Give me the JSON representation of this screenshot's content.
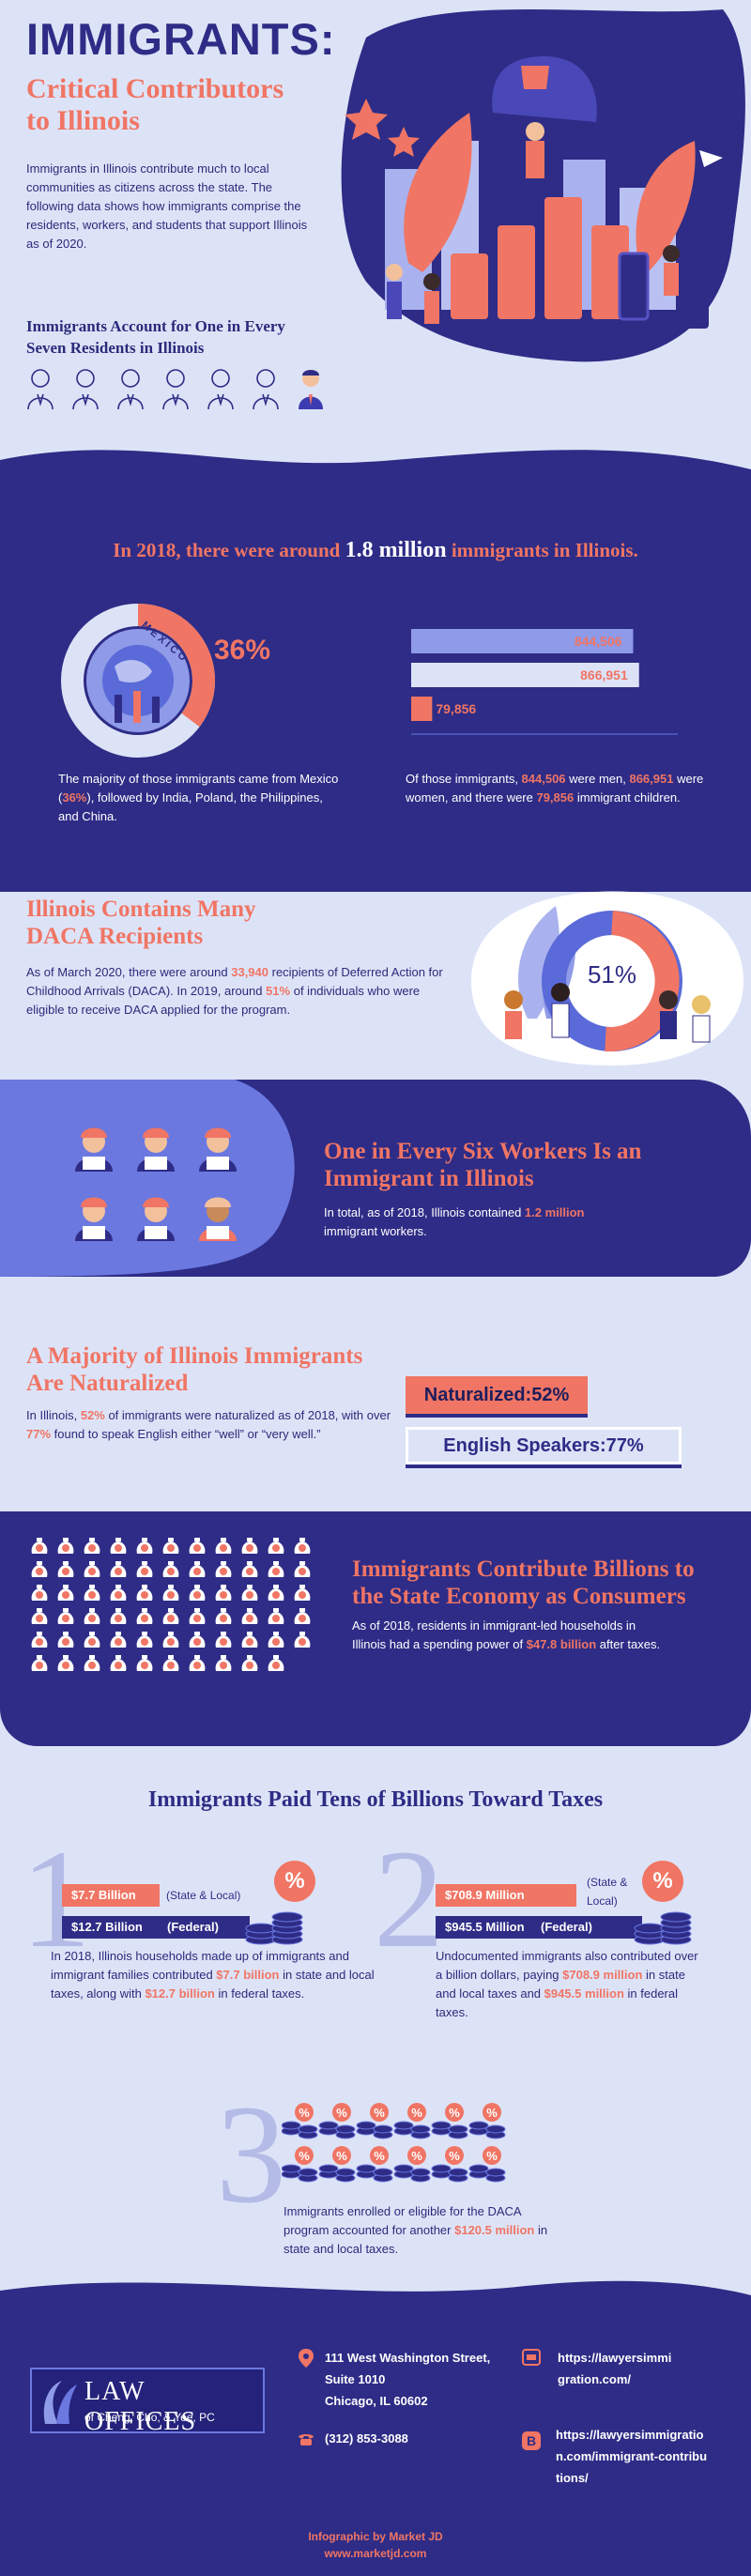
{
  "header": {
    "title": "IMMIGRANTS:",
    "subtitle_line1": "Critical Contributors",
    "subtitle_line2": "to Illinois",
    "intro": "Immigrants in Illinois contribute much to local communities as citizens across the state. The following data shows how immigrants comprise the residents, workers, and students that support Illinois as of 2020.",
    "residents_heading": "Immigrants Account for One in Every Seven Residents in Illinois"
  },
  "population": {
    "headline_pre": "In 2018, there were around ",
    "headline_num": "1.8 million",
    "headline_post": " immigrants in Illinois.",
    "donut_label": "MEXICO",
    "donut_pct": "36%",
    "origin_text_1": "The majority of those immigrants came from Mexico (",
    "origin_pct": "36%",
    "origin_text_2": "), followed by India, Poland, the Philippines, and China.",
    "bars": [
      {
        "label": "844,506",
        "value": 844506
      },
      {
        "label": "866,951",
        "value": 866951
      },
      {
        "label": "79,856",
        "value": 79856
      }
    ],
    "gender_text_1": "Of those immigrants, ",
    "men": "844,506",
    "gender_text_2": " were men, ",
    "women": "866,951",
    "gender_text_3": " were women, and there were ",
    "children": "79,856",
    "gender_text_4": " immigrant children."
  },
  "daca": {
    "title_line1": "Illinois Contains Many",
    "title_line2": "DACA Recipients",
    "text_1": "As of March 2020, there were around ",
    "recipients": "33,940",
    "text_2": " recipients of Deferred Action for Childhood Arrivals (DACA). In 2019, around ",
    "pct": "51%",
    "text_3": " of individuals who were eligible to receive DACA applied for the program.",
    "donut_pct": "51%"
  },
  "workers": {
    "title_line1": "One in Every Six Workers Is an",
    "title_line2": "Immigrant in Illinois",
    "text_1": "In total, as of 2018, Illinois contained ",
    "count": "1.2 million",
    "text_2": " immigrant workers."
  },
  "naturalized": {
    "title_line1": "A Majority of Illinois Immigrants",
    "title_line2": "Are Naturalized",
    "text_1": "In Illinois, ",
    "nat_pct": "52%",
    "text_2": " of immigrants were naturalized as of 2018, with over ",
    "eng_pct": "77%",
    "text_3": " found to speak English either “well” or “very well.”",
    "badge_naturalized": "Naturalized:52%",
    "badge_english": "English Speakers:77%"
  },
  "consumers": {
    "title_line1": "Immigrants Contribute Billions to",
    "title_line2": "the State Economy as Consumers",
    "text_1": "As of 2018, residents in immigrant-led households in Illinois had a spending power of ",
    "amount": "$47.8 billion",
    "text_2": " after taxes."
  },
  "taxes": {
    "heading": "Immigrants Paid Tens of Billions Toward Taxes",
    "one": {
      "numeral": "1",
      "bar1": "$7.7 Billion",
      "bar1_tag": "(State & Local)",
      "bar2": "$12.7 Billion",
      "bar2_tag": "(Federal)",
      "pct_symbol": "%",
      "text_1": "In 2018, Illinois households made up of immigrants and immigrant families contributed ",
      "amt1": "$7.7 billion",
      "text_2": " in state and local taxes, along with ",
      "amt2": "$12.7 billion",
      "text_3": " in federal taxes."
    },
    "two": {
      "numeral": "2",
      "bar1": "$708.9 Million",
      "bar1_tag": "(State & Local)",
      "bar2": "$945.5 Million",
      "bar2_tag": "(Federal)",
      "pct_symbol": "%",
      "text_1": "Undocumented immigrants also contributed over a billion dollars, paying ",
      "amt1": "$708.9 million",
      "text_2": " in state and local taxes and ",
      "amt2": "$945.5 million",
      "text_3": " in federal taxes."
    },
    "three": {
      "numeral": "3",
      "text_1": "Immigrants enrolled or eligible for the DACA program accounted for another ",
      "amt": "$120.5 million",
      "text_2": " in state and local taxes."
    }
  },
  "footer": {
    "logo_line1": "LAW OFFICES",
    "logo_line2": "of Cheng, Cho, & Yee, PC",
    "address_line1": "111 West Washington Street,",
    "address_line2": "Suite 1010",
    "address_line3": "Chicago, IL 60602",
    "phone": "(312) 853-3088",
    "url1_line1": "https://lawyersimmi",
    "url1_line2": "gration.com/",
    "url2_line1": "https://lawyersimmigratio",
    "url2_line2": "n.com/immigrant-contribu",
    "url2_line3": "tions/",
    "credit": "Infographic by Market JD",
    "credit_url": "www.marketjd.com"
  }
}
